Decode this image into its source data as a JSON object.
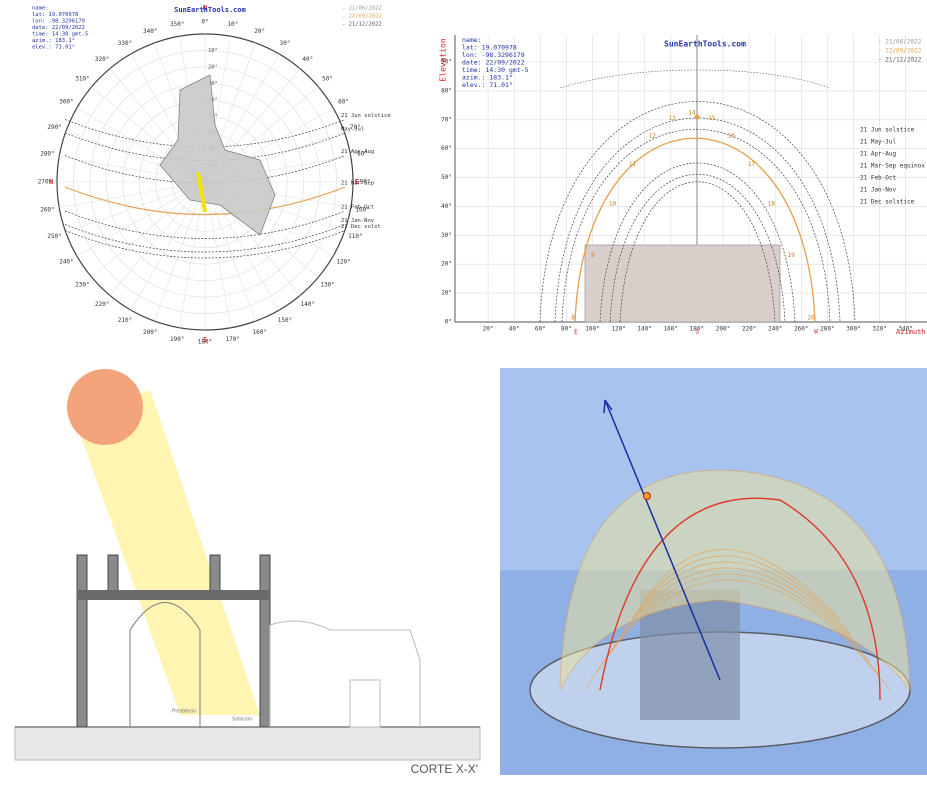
{
  "polar": {
    "site": "SunEarthTools.com",
    "info": [
      "name:",
      "lat: 19.070978",
      "lon: -98.3296179",
      "date: 22/09/2022",
      "time: 14:30 gmt-5",
      "azim.: 183.1°",
      "elev.: 71.01°"
    ],
    "legend": [
      "- 21/06/2022",
      "- 22/09/2022",
      "- 21/12/2022"
    ],
    "cardinals": [
      "N",
      "E",
      "S",
      "W"
    ],
    "azimuth_labels": [
      "0°",
      "10°",
      "20°",
      "30°",
      "40°",
      "50°",
      "60°",
      "70°",
      "80°",
      "90°",
      "100°",
      "110°",
      "120°",
      "130°",
      "140°",
      "150°",
      "160°",
      "170°",
      "180°",
      "190°",
      "200°",
      "210°",
      "220°",
      "230°",
      "240°",
      "250°",
      "260°",
      "270°",
      "280°",
      "290°",
      "300°",
      "310°",
      "320°",
      "330°",
      "340°",
      "350°"
    ],
    "elevation_labels": [
      "10°",
      "20°",
      "30°",
      "40°",
      "50°",
      "60°",
      "70°",
      "80°"
    ],
    "curve_labels": [
      "21 Jun solstice",
      "May-Jul",
      "21 Apr-Aug",
      "21 Mar-Sep",
      "21 Feb-Oct",
      "21 Jan-Nov",
      "21 Dec solst"
    ]
  },
  "cartesian": {
    "site": "SunEarthTools.com",
    "info": [
      "name:",
      "lat: 19.070978",
      "lon: -98.3296179",
      "date: 22/09/2022",
      "time: 14:30 gmt-5",
      "azim.: 183.1°",
      "elev.: 71.01°"
    ],
    "legend": [
      "- 21/06/2022",
      "- 22/09/2022",
      "- 21/12/2022"
    ],
    "y_axis_title": "Elevation",
    "x_axis_title": "Azimuth",
    "y_labels": [
      "0°",
      "10°",
      "20°",
      "30°",
      "40°",
      "50°",
      "60°",
      "70°",
      "80°",
      "90°"
    ],
    "x_labels": [
      "20°",
      "40°",
      "60°",
      "80°",
      "100°",
      "120°",
      "140°",
      "160°",
      "180°",
      "200°",
      "220°",
      "240°",
      "260°",
      "280°",
      "300°",
      "320°",
      "340°"
    ],
    "cardinals": [
      "E",
      "S",
      "W"
    ],
    "hours": [
      "8",
      "9",
      "10",
      "11",
      "12",
      "13",
      "14",
      "15",
      "16",
      "17",
      "18",
      "19",
      "20"
    ],
    "curve_labels": [
      "21 Jun solstice",
      "21 May-Jul",
      "21 Apr-Aug",
      "21 Mar-Sep equinox",
      "21 Feb-Oct",
      "21 Jan-Nov",
      "21 Dec solstice"
    ]
  },
  "section": {
    "caption": "CORTE X-X'",
    "notes": [
      "Presbiterio",
      "Sotocoro"
    ]
  }
}
